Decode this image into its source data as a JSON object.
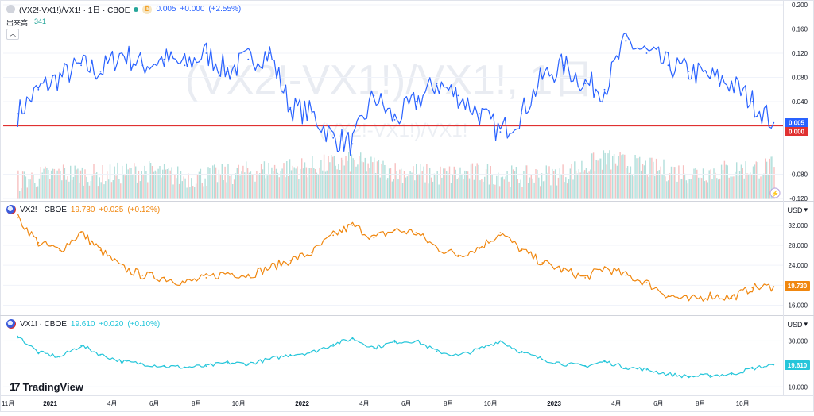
{
  "pane1": {
    "symbol": "(VX2!-VX1!)/VX1! · 1日 · CBOE",
    "interval_badge": "D",
    "value": "0.005",
    "change": "+0.000",
    "change_pct": "(+2.55%)",
    "volume_label": "出来高",
    "volume_value": "341",
    "watermark_big": "(VX2!-VX1!)/VX1!, 1日",
    "watermark_small": "(VX2!-VX1!)/VX1!",
    "last_price_label": "0.005",
    "zero_line_label": "0.000",
    "lightning_icon": "⚡"
  },
  "pane2": {
    "symbol": "VX2! · CBOE",
    "value": "19.730",
    "change": "+0.025",
    "change_pct": "(+0.12%)",
    "currency": "USD",
    "last_price_label": "19.730"
  },
  "pane3": {
    "symbol": "VX1! · CBOE",
    "value": "19.610",
    "change": "+0.020",
    "change_pct": "(+0.10%)",
    "currency": "USD",
    "last_price_label": "19.610"
  },
  "brand": {
    "name": "TradingView"
  },
  "colors": {
    "spread_line": "#2962ff",
    "zero_line": "#e03131",
    "vx2_line": "#f0870f",
    "vx1_line": "#26c6da",
    "vol_up": "#b2dfdb",
    "vol_down": "#f7c0c0",
    "grid": "#f0f3fa"
  },
  "chart_data": [
    {
      "type": "line",
      "title": "(VX2!-VX1!)/VX1! · 1日 · CBOE",
      "x": [
        "2020-11",
        "2020-12",
        "2021-01",
        "2021-02",
        "2021-03",
        "2021-04",
        "2021-05",
        "2021-06",
        "2021-07",
        "2021-08",
        "2021-09",
        "2021-10",
        "2021-11",
        "2021-12",
        "2022-01",
        "2022-02",
        "2022-03",
        "2022-04",
        "2022-05",
        "2022-06",
        "2022-07",
        "2022-08",
        "2022-09",
        "2022-10",
        "2022-11",
        "2022-12",
        "2023-01",
        "2023-02",
        "2023-03",
        "2023-04",
        "2023-05",
        "2023-06",
        "2023-07",
        "2023-08",
        "2023-09",
        "2023-10",
        "2023-11"
      ],
      "y": [
        0.02,
        0.06,
        0.08,
        0.1,
        0.09,
        0.12,
        0.1,
        0.11,
        0.1,
        0.12,
        0.09,
        0.11,
        0.12,
        0.03,
        0.02,
        -0.02,
        -0.03,
        0.05,
        0.01,
        0.04,
        0.07,
        0.05,
        0.02,
        -0.01,
        0.02,
        0.08,
        0.1,
        0.07,
        0.06,
        0.14,
        0.12,
        0.1,
        0.09,
        0.08,
        0.07,
        0.04,
        0.005
      ],
      "ylim": [
        -0.12,
        0.2
      ],
      "y_ticks": [
        "0.200",
        "0.160",
        "0.120",
        "0.080",
        "0.040",
        "-0.080",
        "-0.120"
      ],
      "reference_line": 0.0,
      "volume": {
        "x": [
          "2020-11",
          "2021-01",
          "2021-03",
          "2021-05",
          "2021-07",
          "2021-09",
          "2021-11",
          "2022-01",
          "2022-03",
          "2022-05",
          "2022-07",
          "2022-09",
          "2022-11",
          "2023-01",
          "2023-03",
          "2023-05",
          "2023-07",
          "2023-09",
          "2023-11"
        ],
        "y": [
          300,
          420,
          380,
          460,
          350,
          400,
          480,
          520,
          600,
          450,
          380,
          420,
          360,
          410,
          640,
          500,
          420,
          470,
          520
        ]
      }
    },
    {
      "type": "line",
      "title": "VX2! · CBOE",
      "x": [
        "2020-11",
        "2020-12",
        "2021-01",
        "2021-02",
        "2021-03",
        "2021-04",
        "2021-05",
        "2021-06",
        "2021-07",
        "2021-08",
        "2021-09",
        "2021-10",
        "2021-11",
        "2021-12",
        "2022-01",
        "2022-02",
        "2022-03",
        "2022-04",
        "2022-05",
        "2022-06",
        "2022-07",
        "2022-08",
        "2022-09",
        "2022-10",
        "2022-11",
        "2022-12",
        "2023-01",
        "2023-02",
        "2023-03",
        "2023-04",
        "2023-05",
        "2023-06",
        "2023-07",
        "2023-08",
        "2023-09",
        "2023-10",
        "2023-11"
      ],
      "y": [
        33.5,
        28.5,
        27.0,
        30.5,
        27.0,
        23.5,
        22.0,
        21.5,
        20.5,
        21.5,
        22.5,
        22.0,
        23.5,
        25.0,
        26.5,
        30.0,
        32.0,
        29.5,
        31.0,
        30.5,
        27.5,
        26.0,
        27.5,
        30.5,
        27.0,
        24.5,
        23.0,
        21.5,
        23.5,
        22.0,
        20.5,
        18.0,
        17.0,
        18.0,
        17.5,
        19.5,
        19.73
      ],
      "ylim": [
        14.5,
        34.5
      ],
      "y_ticks": [
        "32.000",
        "28.000",
        "24.000",
        "20.000",
        "16.000"
      ],
      "last_value": 19.73
    },
    {
      "type": "line",
      "title": "VX1! · CBOE",
      "x": [
        "2020-11",
        "2020-12",
        "2021-01",
        "2021-02",
        "2021-03",
        "2021-04",
        "2021-05",
        "2021-06",
        "2021-07",
        "2021-08",
        "2021-09",
        "2021-10",
        "2021-11",
        "2021-12",
        "2022-01",
        "2022-02",
        "2022-03",
        "2022-04",
        "2022-05",
        "2022-06",
        "2022-07",
        "2022-08",
        "2022-09",
        "2022-10",
        "2022-11",
        "2022-12",
        "2023-01",
        "2023-02",
        "2023-03",
        "2023-04",
        "2023-05",
        "2023-06",
        "2023-07",
        "2023-08",
        "2023-09",
        "2023-10",
        "2023-11"
      ],
      "y": [
        32.0,
        25.0,
        23.0,
        28.0,
        24.0,
        21.0,
        20.0,
        19.0,
        18.5,
        19.0,
        20.5,
        20.0,
        22.0,
        24.0,
        25.0,
        28.5,
        31.0,
        27.0,
        29.5,
        30.0,
        25.5,
        23.5,
        26.5,
        30.0,
        25.0,
        22.0,
        20.0,
        19.0,
        21.0,
        18.5,
        17.5,
        15.5,
        14.5,
        15.0,
        15.5,
        18.0,
        19.61
      ],
      "ylim": [
        7.0,
        36.0
      ],
      "y_ticks": [
        "30.000",
        "20.000",
        "10.000"
      ],
      "last_value": 19.61
    }
  ],
  "x_axis": {
    "labels": [
      "11月",
      "2021",
      "4月",
      "6月",
      "8月",
      "10月",
      "2022",
      "4月",
      "6月",
      "8月",
      "10月",
      "2023",
      "4月",
      "6月",
      "8月",
      "10月"
    ],
    "dates": [
      "2020-11",
      "2021-01",
      "2021-04",
      "2021-06",
      "2021-08",
      "2021-10",
      "2022-01",
      "2022-04",
      "2022-06",
      "2022-08",
      "2022-10",
      "2023-01",
      "2023-04",
      "2023-06",
      "2023-08",
      "2023-10"
    ],
    "domain": [
      "2020-10-25",
      "2023-11-25"
    ]
  }
}
